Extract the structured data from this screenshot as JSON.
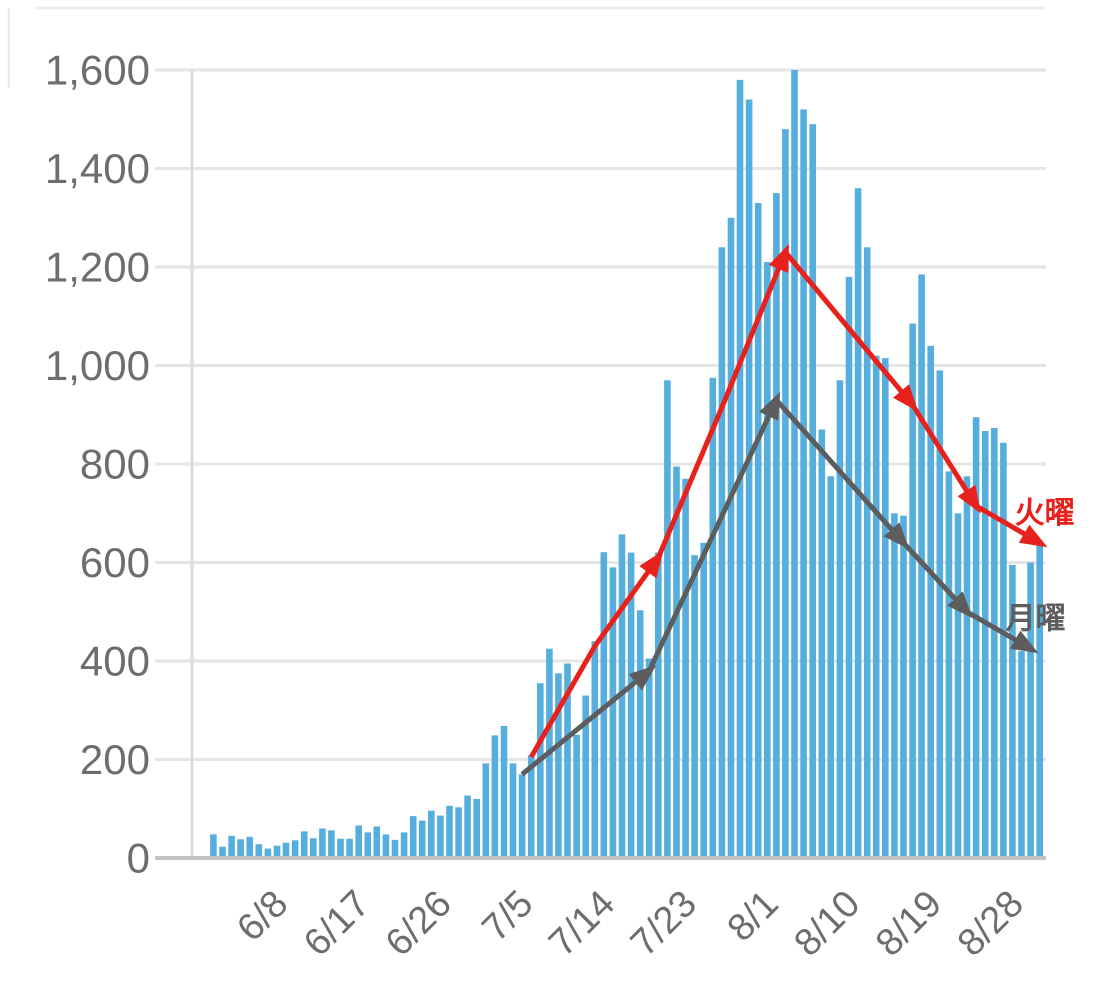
{
  "chart_data": {
    "type": "bar",
    "title": "",
    "xlabel": "",
    "ylabel": "",
    "ylim": [
      0,
      1600
    ],
    "grid": true,
    "legend_position": "none",
    "y_tick_values": [
      0,
      200,
      400,
      600,
      800,
      1000,
      1200,
      1400,
      1600
    ],
    "y_tick_labels": [
      "0",
      "200",
      "400",
      "600",
      "800",
      "1,000",
      "1,200",
      "1,400",
      "1,600"
    ],
    "x_ticks": [
      {
        "index": 7,
        "label": "6/8"
      },
      {
        "index": 16,
        "label": "6/17"
      },
      {
        "index": 25,
        "label": "6/26"
      },
      {
        "index": 34,
        "label": "7/5"
      },
      {
        "index": 43,
        "label": "7/14"
      },
      {
        "index": 52,
        "label": "7/23"
      },
      {
        "index": 61,
        "label": "8/1"
      },
      {
        "index": 70,
        "label": "8/10"
      },
      {
        "index": 79,
        "label": "8/19"
      },
      {
        "index": 88,
        "label": "8/28"
      }
    ],
    "categories": [
      "6/1",
      "6/2",
      "6/3",
      "6/4",
      "6/5",
      "6/6",
      "6/7",
      "6/8",
      "6/9",
      "6/10",
      "6/11",
      "6/12",
      "6/13",
      "6/14",
      "6/15",
      "6/16",
      "6/17",
      "6/18",
      "6/19",
      "6/20",
      "6/21",
      "6/22",
      "6/23",
      "6/24",
      "6/25",
      "6/26",
      "6/27",
      "6/28",
      "6/29",
      "6/30",
      "7/1",
      "7/2",
      "7/3",
      "7/4",
      "7/5",
      "7/6",
      "7/7",
      "7/8",
      "7/9",
      "7/10",
      "7/11",
      "7/12",
      "7/13",
      "7/14",
      "7/15",
      "7/16",
      "7/17",
      "7/18",
      "7/19",
      "7/20",
      "7/21",
      "7/22",
      "7/23",
      "7/24",
      "7/25",
      "7/26",
      "7/27",
      "7/28",
      "7/29",
      "7/30",
      "7/31",
      "8/1",
      "8/2",
      "8/3",
      "8/4",
      "8/5",
      "8/6",
      "8/7",
      "8/8",
      "8/9",
      "8/10",
      "8/11",
      "8/12",
      "8/13",
      "8/14",
      "8/15",
      "8/16",
      "8/17",
      "8/18",
      "8/19",
      "8/20",
      "8/21",
      "8/22",
      "8/23",
      "8/24",
      "8/25",
      "8/26",
      "8/27",
      "8/28",
      "8/29",
      "8/30",
      "8/31"
    ],
    "values": [
      48,
      23,
      45,
      38,
      43,
      28,
      19,
      25,
      31,
      36,
      54,
      40,
      60,
      56,
      39,
      39,
      66,
      52,
      64,
      48,
      37,
      52,
      85,
      76,
      96,
      86,
      106,
      103,
      127,
      120,
      192,
      249,
      268,
      192,
      170,
      209,
      355,
      425,
      375,
      395,
      250,
      330,
      440,
      621,
      590,
      657,
      620,
      503,
      405,
      620,
      970,
      795,
      770,
      615,
      640,
      975,
      1240,
      1300,
      1580,
      1540,
      1330,
      1210,
      1350,
      1480,
      1600,
      1520,
      1490,
      870,
      775,
      970,
      1180,
      1360,
      1240,
      1020,
      1015,
      700,
      695,
      1085,
      1185,
      1040,
      990,
      785,
      700,
      775,
      895,
      867,
      873,
      843,
      595,
      420,
      600,
      640
    ],
    "annotations": [
      {
        "id": "tuesday",
        "label": "火曜",
        "color": "#e8211c",
        "dates": [
          "7/6",
          "7/13",
          "7/20",
          "7/27",
          "8/3",
          "8/10",
          "8/17",
          "8/24",
          "8/31"
        ],
        "values": [
          205,
          430,
          610,
          915,
          1230,
          1075,
          920,
          715,
          640
        ],
        "arrow_vertex_indices": [
          2,
          4,
          6,
          7,
          8
        ]
      },
      {
        "id": "monday",
        "label": "月曜",
        "color": "#5d5d5d",
        "dates": [
          "7/5",
          "7/12",
          "7/19",
          "7/26",
          "8/2",
          "8/9",
          "8/16",
          "8/23",
          "8/30"
        ],
        "values": [
          170,
          275,
          380,
          655,
          930,
          785,
          640,
          500,
          425
        ],
        "arrow_vertex_indices": [
          2,
          4,
          6,
          7,
          8
        ]
      }
    ],
    "colors": {
      "bar": "#55aedd",
      "grid": "#e5e5e5",
      "baseline": "#c3c3c3",
      "axis": "#dcdcdc",
      "tick_text": "#6d6d6d",
      "border": "#ececec",
      "background": "#ffffff"
    }
  }
}
